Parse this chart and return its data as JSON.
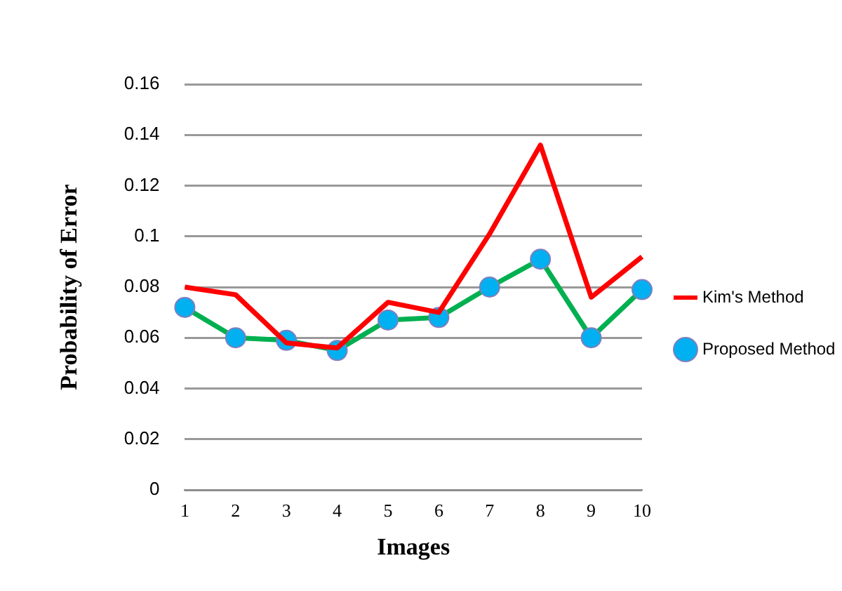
{
  "chart_data": {
    "type": "line",
    "xlabel": "Images",
    "ylabel": "Probability of Error",
    "categories": [
      "1",
      "2",
      "3",
      "4",
      "5",
      "6",
      "7",
      "8",
      "9",
      "10"
    ],
    "series": [
      {
        "name": "Kim's Method",
        "color": "#ff0000",
        "marker": "none",
        "values": [
          0.08,
          0.077,
          0.058,
          0.056,
          0.074,
          0.07,
          0.101,
          0.136,
          0.076,
          0.092
        ]
      },
      {
        "name": "Proposed Method",
        "color": "#00b050",
        "marker": "circle",
        "values": [
          0.072,
          0.06,
          0.059,
          0.055,
          0.067,
          0.068,
          0.08,
          0.091,
          0.06,
          0.079
        ]
      }
    ],
    "ylim": [
      0,
      0.16
    ],
    "yticks": [
      0,
      0.02,
      0.04,
      0.06,
      0.08,
      0.1,
      0.12,
      0.14,
      0.16
    ],
    "grid": "y",
    "legend": "right",
    "line_style": "solid"
  }
}
